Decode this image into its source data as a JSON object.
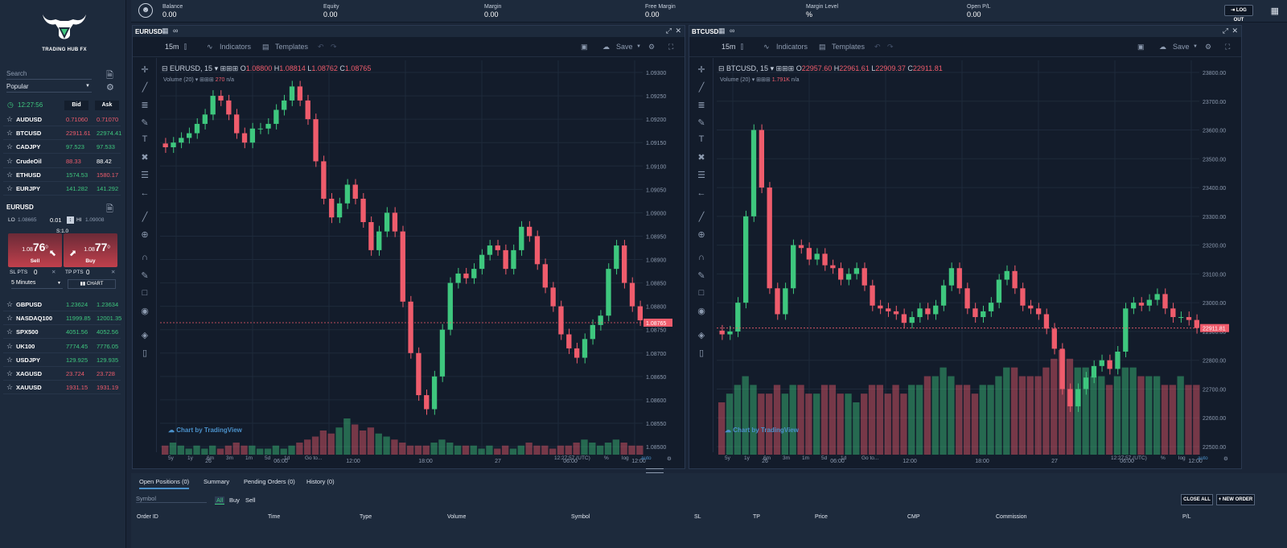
{
  "brand": {
    "name": "TRADING HUB FX"
  },
  "sidebar": {
    "search_placeholder": "Search",
    "list_select": "Popular",
    "time": "12:27:56",
    "bid_header": "Bid",
    "ask_header": "Ask",
    "symbols_top": [
      {
        "name": "AUDUSD",
        "bid": "0.71060",
        "ask": "0.71070",
        "bid_color": "red",
        "ask_color": "red"
      },
      {
        "name": "BTCUSD",
        "bid": "22911.61",
        "ask": "22974.41",
        "bid_color": "red",
        "ask_color": "green"
      },
      {
        "name": "CADJPY",
        "bid": "97.523",
        "ask": "97.533",
        "bid_color": "green",
        "ask_color": "green"
      },
      {
        "name": "CrudeOil",
        "bid": "88.33",
        "ask": "88.42",
        "bid_color": "red",
        "ask_color": "white"
      },
      {
        "name": "ETHUSD",
        "bid": "1574.53",
        "ask": "1580.17",
        "bid_color": "green",
        "ask_color": "red"
      },
      {
        "name": "EURJPY",
        "bid": "141.282",
        "ask": "141.292",
        "bid_color": "green",
        "ask_color": "green"
      }
    ],
    "ticket": {
      "symbol": "EURUSD",
      "lo_label": "LO",
      "lo_value": "1.08665",
      "lot": "0.01",
      "hi_label": "HI",
      "hi_value": "1.09008",
      "spread": "S:1.0",
      "sell_prefix": "1.08",
      "sell_big": "76",
      "sell_sup": "0",
      "sell_label": "Sell",
      "buy_prefix": "1.08",
      "buy_big": "77",
      "buy_sup": "0",
      "buy_label": "Buy",
      "sl_label": "SL PTS",
      "sl_value": "0",
      "tp_label": "TP PTS",
      "tp_value": "0",
      "timeframe": "5 Minutes",
      "chart_label": "CHART"
    },
    "symbols_bottom": [
      {
        "name": "GBPUSD",
        "bid": "1.23624",
        "ask": "1.23634",
        "bid_color": "green",
        "ask_color": "green"
      },
      {
        "name": "NASDAQ100",
        "bid": "11999.85",
        "ask": "12001.35",
        "bid_color": "green",
        "ask_color": "green"
      },
      {
        "name": "SPX500",
        "bid": "4051.56",
        "ask": "4052.56",
        "bid_color": "green",
        "ask_color": "green"
      },
      {
        "name": "UK100",
        "bid": "7774.45",
        "ask": "7776.05",
        "bid_color": "green",
        "ask_color": "green"
      },
      {
        "name": "USDJPY",
        "bid": "129.925",
        "ask": "129.935",
        "bid_color": "green",
        "ask_color": "green"
      },
      {
        "name": "XAGUSD",
        "bid": "23.724",
        "ask": "23.728",
        "bid_color": "red",
        "ask_color": "red"
      },
      {
        "name": "XAUUSD",
        "bid": "1931.15",
        "ask": "1931.19",
        "bid_color": "red",
        "ask_color": "red"
      }
    ]
  },
  "account": [
    {
      "label": "Balance",
      "value": "0.00"
    },
    {
      "label": "Equity",
      "value": "0.00"
    },
    {
      "label": "Margin",
      "value": "0.00"
    },
    {
      "label": "Free Margin",
      "value": "0.00"
    },
    {
      "label": "Margin Level",
      "value": "%"
    },
    {
      "label": "Open P/L",
      "value": "0.00"
    }
  ],
  "logout_label": "LOG OUT",
  "charts": [
    {
      "title": "EURUSD",
      "interval": "15m",
      "indicators": "Indicators",
      "templates": "Templates",
      "save": "Save",
      "legend_sym": "EURUSD, 15",
      "o": "1.08800",
      "h": "1.08814",
      "l": "1.08762",
      "c": "1.08765",
      "volume_label": "Volume (20)",
      "volume_value": "270",
      "volume_na": "n/a",
      "price_axis": [
        "1.09300",
        "1.09250",
        "1.09200",
        "1.09150",
        "1.09100",
        "1.09050",
        "1.09000",
        "1.08950",
        "1.08900",
        "1.08850",
        "1.08800",
        "1.08750",
        "1.08700",
        "1.08650",
        "1.08600",
        "1.08550",
        "1.08500"
      ],
      "last_price": "1.08765",
      "time_axis": [
        "26",
        "06:00",
        "12:00",
        "18:00",
        "27",
        "06:00",
        "12:00"
      ],
      "ranges": [
        "5y",
        "1y",
        "6m",
        "3m",
        "1m",
        "5d",
        "1d",
        "Go to..."
      ],
      "clock": "12:27:57 (UTC)",
      "pct": "%",
      "log": "log",
      "auto": "auto",
      "tv": "Chart by TradingView",
      "closes": [
        1.0914,
        1.0915,
        1.0916,
        1.0917,
        1.0919,
        1.0921,
        1.0925,
        1.0924,
        1.0921,
        1.0917,
        1.0915,
        1.0918,
        1.0918,
        1.0919,
        1.0922,
        1.0924,
        1.0927,
        1.0924,
        1.092,
        1.0911,
        1.0903,
        1.0899,
        1.0902,
        1.0906,
        1.0903,
        1.0898,
        1.0892,
        1.0896,
        1.09,
        1.0896,
        1.0881,
        1.087,
        1.0861,
        1.0858,
        1.0865,
        1.0875,
        1.0885,
        1.0887,
        1.0886,
        1.0888,
        1.0891,
        1.0893,
        1.0892,
        1.0888,
        1.0892,
        1.0897,
        1.0895,
        1.0889,
        1.0884,
        1.088,
        1.0874,
        1.0871,
        1.0869,
        1.0873,
        1.0876,
        1.0878,
        1.0888,
        1.0893,
        1.0885,
        1.088,
        1.0877
      ],
      "vols": [
        3,
        4,
        3,
        2,
        3,
        2,
        3,
        2,
        3,
        4,
        3,
        3,
        2,
        2,
        3,
        2,
        3,
        4,
        5,
        6,
        8,
        7,
        9,
        12,
        10,
        8,
        9,
        7,
        6,
        5,
        4,
        3,
        3,
        3,
        4,
        5,
        4,
        3,
        3,
        3,
        2,
        3,
        2,
        3,
        2,
        3,
        4,
        3,
        3,
        2,
        3,
        3,
        4,
        5,
        4,
        3,
        4,
        5,
        4,
        3,
        3
      ]
    },
    {
      "title": "BTCUSD",
      "interval": "15m",
      "indicators": "Indicators",
      "templates": "Templates",
      "save": "Save",
      "legend_sym": "BTCUSD, 15",
      "o": "22957.60",
      "h": "22961.61",
      "l": "22909.37",
      "c": "22911.81",
      "volume_label": "Volume (20)",
      "volume_value": "1.791K",
      "volume_na": "n/a",
      "price_axis": [
        "23800.00",
        "23700.00",
        "23600.00",
        "23500.00",
        "23400.00",
        "23300.00",
        "23200.00",
        "23100.00",
        "23000.00",
        "22900.00",
        "22800.00",
        "22700.00",
        "22600.00",
        "22500.00"
      ],
      "last_price": "22911.81",
      "time_axis": [
        "26",
        "06:00",
        "12:00",
        "18:00",
        "27",
        "06:00",
        "12:00"
      ],
      "ranges": [
        "5y",
        "1y",
        "6m",
        "3m",
        "1m",
        "5d",
        "1d",
        "Go to..."
      ],
      "clock": "12:27:57 (UTC)",
      "pct": "%",
      "log": "log",
      "auto": "auto",
      "tv": "Chart by TradingView",
      "closes": [
        22890,
        22900,
        23000,
        23300,
        23600,
        23400,
        23050,
        22960,
        23050,
        23200,
        23190,
        23150,
        23170,
        23130,
        23120,
        23080,
        23100,
        23120,
        23060,
        22990,
        22980,
        22970,
        22960,
        22930,
        22950,
        22980,
        22960,
        22990,
        23060,
        23120,
        23050,
        22980,
        22950,
        22970,
        23000,
        23080,
        23110,
        23050,
        22990,
        22980,
        22960,
        22910,
        22840,
        22700,
        22640,
        22700,
        22740,
        22780,
        22800,
        22770,
        22830,
        22980,
        23000,
        22990,
        23010,
        23030,
        22980,
        22950,
        22950,
        22940,
        22912
      ],
      "vols": [
        6,
        7,
        8,
        9,
        8,
        7,
        7,
        8,
        7,
        8,
        8,
        7,
        7,
        8,
        8,
        7,
        7,
        6,
        7,
        8,
        8,
        7,
        8,
        7,
        8,
        8,
        9,
        9,
        10,
        9,
        8,
        8,
        7,
        8,
        8,
        9,
        10,
        10,
        9,
        9,
        9,
        10,
        11,
        12,
        11,
        10,
        10,
        9,
        9,
        8,
        9,
        10,
        10,
        9,
        9,
        9,
        8,
        8,
        9,
        8,
        8
      ]
    }
  ],
  "bottom": {
    "tabs": [
      "Open Positions (0)",
      "Summary",
      "Pending Orders (0)",
      "History (0)"
    ],
    "symbol_placeholder": "Symbol",
    "filters": [
      "All",
      "Buy",
      "Sell"
    ],
    "close_all": "CLOSE ALL",
    "new_order": "+ NEW ORDER",
    "columns": [
      "Order ID",
      "Time",
      "Type",
      "Volume",
      "Symbol",
      "SL",
      "TP",
      "Price",
      "CMP",
      "Commission",
      "P/L"
    ]
  },
  "colors": {
    "up": "#3ec77e",
    "down": "#ef5c6c",
    "accent": "#4a90c9"
  }
}
